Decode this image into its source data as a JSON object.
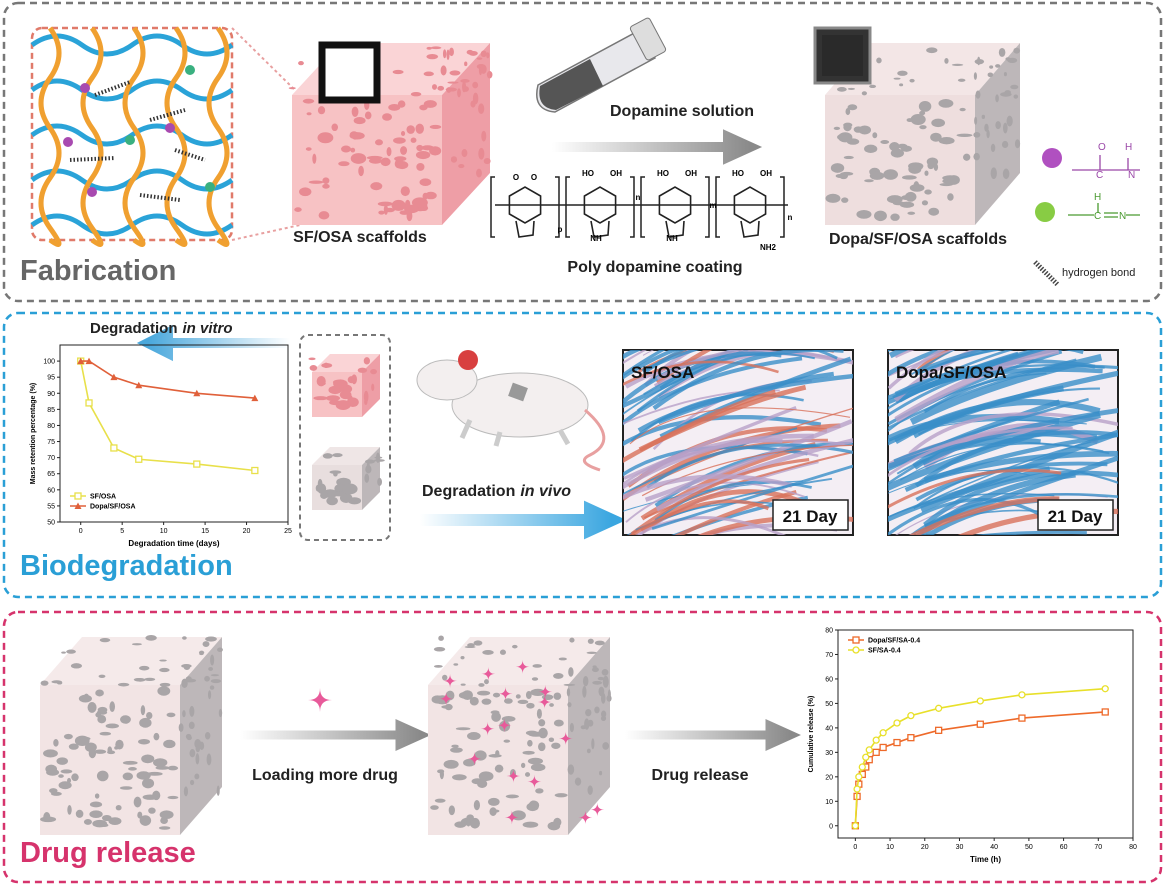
{
  "fabrication": {
    "title": "Fabrication",
    "scaffold_label": "SF/OSA scaffolds",
    "solution_label": "Dopamine solution",
    "coating_label": "Poly dopamine coating",
    "coated_label": "Dopa/SF/OSA scaffolds",
    "hydrogen_bond": "hydrogen bond",
    "structure_labels": [
      "O",
      "O",
      "p",
      "HO",
      "OH",
      "NH",
      "n",
      "HO",
      "OH",
      "NH",
      "m",
      "HO",
      "OH",
      "n",
      "NH2"
    ],
    "amide_labels": [
      "O",
      "H",
      "C",
      "N"
    ],
    "imine_labels": [
      "H",
      "C",
      "N"
    ]
  },
  "biodegradation": {
    "title": "Biodegradation",
    "in_vitro": [
      "Degradation",
      "in vitro"
    ],
    "in_vivo": [
      "Degradation",
      "in vivo"
    ],
    "histology": [
      {
        "label": "SF/OSA",
        "day": "21 Day"
      },
      {
        "label": "Dopa/SF/OSA",
        "day": "21 Day"
      }
    ]
  },
  "drug_release": {
    "title": "Drug release",
    "loading": "Loading more drug",
    "release": "Drug release"
  },
  "chart_data": [
    {
      "type": "line",
      "x_label": "Degradation time (days)",
      "y_label": "Mass retention percentage (%)",
      "x": [
        0,
        1,
        4,
        7,
        14,
        21
      ],
      "xlim": [
        -2.5,
        25
      ],
      "ylim": [
        50,
        105
      ],
      "xticks": [
        0,
        5,
        10,
        15,
        20,
        25
      ],
      "yticks": [
        50,
        55,
        60,
        65,
        70,
        75,
        80,
        85,
        90,
        95,
        100
      ],
      "legend": "lower left",
      "series": [
        {
          "name": "SF/OSA",
          "color": "#e8e04a",
          "marker": "square",
          "values": [
            100,
            87,
            73,
            69.5,
            68,
            66
          ]
        },
        {
          "name": "Dopa/SF/OSA",
          "color": "#e0603a",
          "marker": "triangle",
          "values": [
            100,
            100,
            95,
            92.5,
            90,
            88.5
          ]
        }
      ]
    },
    {
      "type": "line",
      "x_label": "Time (h)",
      "y_label": "Cumulative release (%)",
      "x": [
        0,
        0.5,
        1,
        2,
        3,
        4,
        6,
        8,
        12,
        16,
        24,
        36,
        48,
        72
      ],
      "xlim": [
        -5,
        80
      ],
      "ylim": [
        -5,
        80
      ],
      "xticks": [
        0,
        10,
        20,
        30,
        40,
        50,
        60,
        70,
        80
      ],
      "yticks": [
        0,
        10,
        20,
        30,
        40,
        50,
        60,
        70,
        80
      ],
      "legend": "upper left",
      "series": [
        {
          "name": "Dopa/SF/SA-0.4",
          "color": "#ee6a2a",
          "marker": "square",
          "values": [
            0,
            12,
            17,
            21,
            24,
            27,
            30,
            32,
            34,
            36,
            39,
            41.5,
            44,
            46.5
          ]
        },
        {
          "name": "SF/SA-0.4",
          "color": "#e8e02a",
          "marker": "circle",
          "values": [
            0,
            15,
            20,
            24,
            28,
            31,
            35,
            38,
            42,
            45,
            48,
            51,
            53.5,
            56
          ]
        }
      ]
    }
  ]
}
